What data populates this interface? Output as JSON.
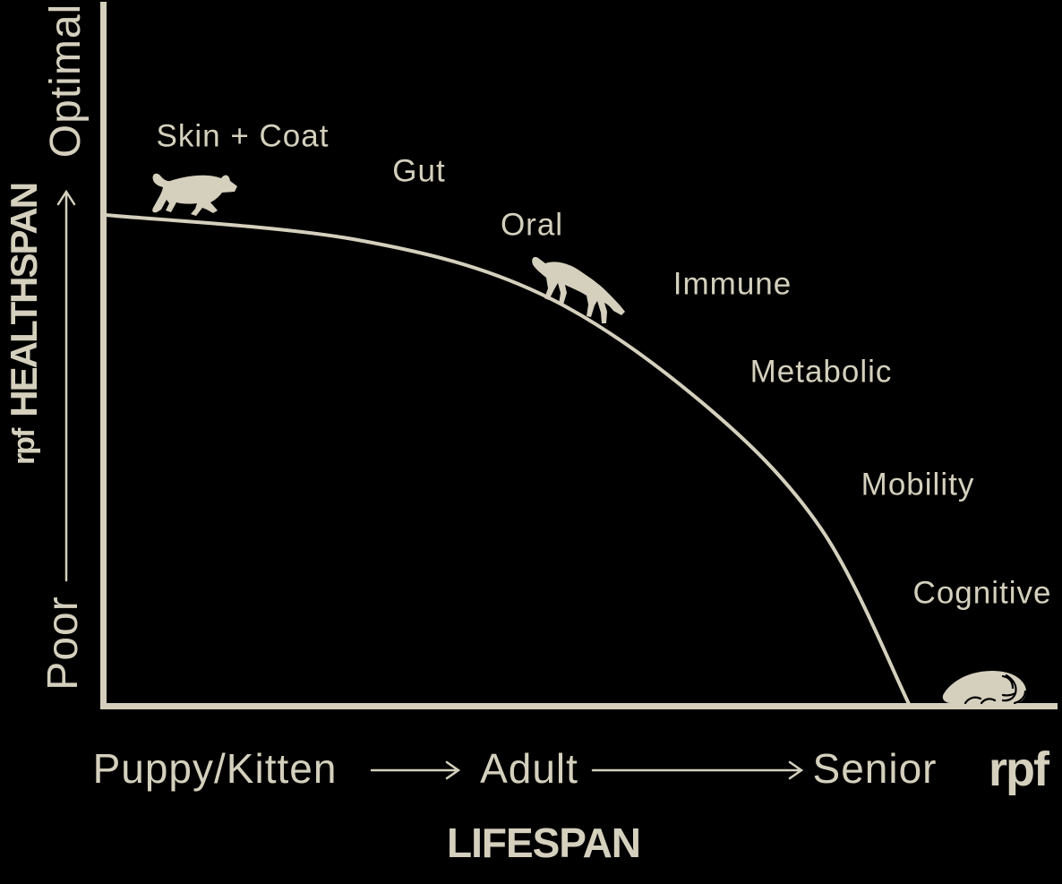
{
  "colors": {
    "background": "#000000",
    "ink": "#D4D0BD"
  },
  "branding": {
    "y_axis_brand": "rpf",
    "footer_brand": "rpf"
  },
  "figures": [
    {
      "icon": "running-puppy-icon",
      "life_stage": "Puppy/Kitten"
    },
    {
      "icon": "adult-dog-icon",
      "life_stage": "Adult"
    },
    {
      "icon": "senior-dog-icon",
      "life_stage": "Senior"
    }
  ],
  "chart_data": {
    "type": "line",
    "title": "",
    "xlabel": "LIFESPAN",
    "ylabel": "HEALTHSPAN",
    "x_tick_labels": [
      "Puppy/Kitten",
      "Adult",
      "Senior"
    ],
    "y_tick_labels": [
      "Poor",
      "Optimal"
    ],
    "x_range_normalized": [
      0,
      1
    ],
    "y_range_normalized": [
      0,
      1
    ],
    "grid": false,
    "legend": false,
    "series": [
      {
        "name": "healthspan-over-lifespan",
        "x": [
          0,
          0.31,
          0.54,
          0.74,
          0.89,
          1.0
        ],
        "y": [
          1.0,
          0.95,
          0.84,
          0.62,
          0.36,
          0.0
        ]
      }
    ],
    "annotations": [
      {
        "text": "Skin + Coat",
        "x": 0.17,
        "y": 1.16
      },
      {
        "text": "Gut",
        "x": 0.39,
        "y": 1.09
      },
      {
        "text": "Oral",
        "x": 0.53,
        "y": 0.98
      },
      {
        "text": "Immune",
        "x": 0.78,
        "y": 0.86
      },
      {
        "text": "Metabolic",
        "x": 0.89,
        "y": 0.68
      },
      {
        "text": "Mobility",
        "x": 1.01,
        "y": 0.45
      },
      {
        "text": "Cognitive",
        "x": 1.09,
        "y": 0.23
      }
    ]
  }
}
